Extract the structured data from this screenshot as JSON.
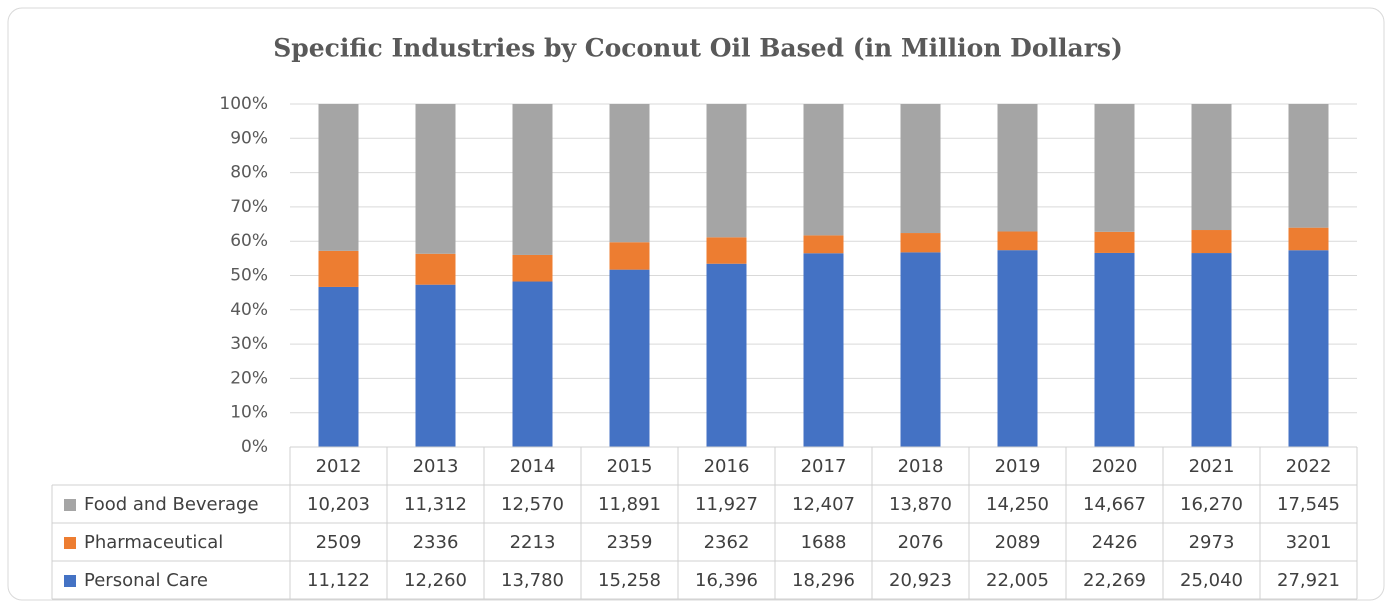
{
  "chart_data": {
    "type": "stacked_percent_bar",
    "title": "Specific Industries by Coconut Oil Based (in Million Dollars)",
    "categories": [
      "2012",
      "2013",
      "2014",
      "2015",
      "2016",
      "2017",
      "2018",
      "2019",
      "2020",
      "2021",
      "2022"
    ],
    "series": [
      {
        "name": "Food and Beverage",
        "color": "#a5a5a5",
        "values": [
          10203,
          11312,
          12570,
          11891,
          11927,
          12407,
          13870,
          14250,
          14667,
          16270,
          17545
        ],
        "value_labels": [
          "10,203",
          "11,312",
          "12,570",
          "11,891",
          "11,927",
          "12,407",
          "13,870",
          "14,250",
          "14,667",
          "16,270",
          "17,545"
        ]
      },
      {
        "name": "Pharmaceutical",
        "color": "#ed7d31",
        "values": [
          2509,
          2336,
          2213,
          2359,
          2362,
          1688,
          2076,
          2089,
          2426,
          2973,
          3201
        ]
      },
      {
        "name": "Personal Care",
        "color": "#4472c4",
        "values": [
          11122,
          12260,
          13780,
          15258,
          16396,
          18296,
          20923,
          22005,
          22269,
          25040,
          27921
        ],
        "value_labels": [
          "11,122",
          "12,260",
          "13,780",
          "15,258",
          "16,396",
          "18,296",
          "20,923",
          "22,005",
          "22,269",
          "25,040",
          "27,921"
        ]
      }
    ],
    "ylim": [
      0,
      100
    ],
    "yticks": [
      {
        "value": 0,
        "label": "0%"
      },
      {
        "value": 10,
        "label": "10%"
      },
      {
        "value": 20,
        "label": "20%"
      },
      {
        "value": 30,
        "label": "30%"
      },
      {
        "value": 40,
        "label": "40%"
      },
      {
        "value": 50,
        "label": "50%"
      },
      {
        "value": 60,
        "label": "60%"
      },
      {
        "value": 70,
        "label": "70%"
      },
      {
        "value": 80,
        "label": "80%"
      },
      {
        "value": 90,
        "label": "90%"
      },
      {
        "value": 100,
        "label": "100%"
      }
    ],
    "grid": true,
    "data_table": true
  }
}
